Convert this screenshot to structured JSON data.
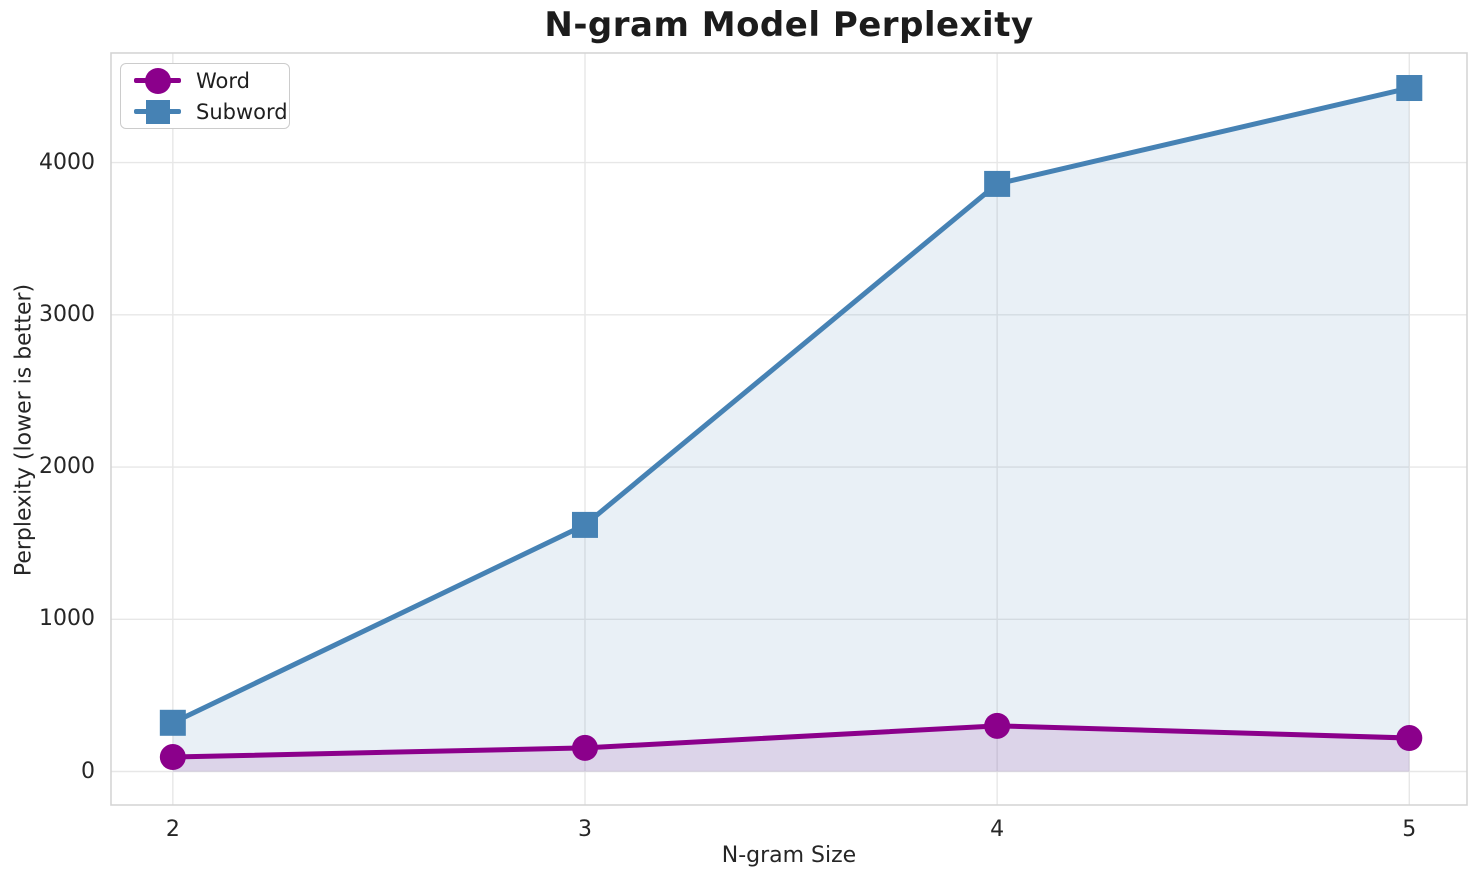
{
  "chart_data": {
    "type": "line",
    "title": "N-gram Model Perplexity",
    "xlabel": "N-gram Size",
    "ylabel": "Perplexity (lower is better)",
    "x": [
      2,
      3,
      4,
      5
    ],
    "x_tick_labels": [
      "2",
      "3",
      "4",
      "5"
    ],
    "y_ticks": [
      0,
      1000,
      2000,
      3000,
      4000
    ],
    "y_tick_labels": [
      "0",
      "1000",
      "2000",
      "3000",
      "4000"
    ],
    "series": [
      {
        "name": "Word",
        "marker": "circle",
        "color": "#8B008B",
        "values": [
          95,
          155,
          300,
          220
        ]
      },
      {
        "name": "Subword",
        "marker": "square",
        "color": "#4682B4",
        "values": [
          320,
          1620,
          3860,
          4490
        ]
      }
    ],
    "xlim": [
      1.85,
      5.14
    ],
    "ylim": [
      -220,
      4720
    ],
    "grid": true,
    "legend_position": "upper left",
    "fill_to_zero": true,
    "fill_opacity": 0.12,
    "colors": {
      "grid": "#e7e7e7",
      "spine": "#d5d5d5",
      "text": "#262626",
      "title": "#1c1c1c",
      "background": "#ffffff"
    }
  }
}
